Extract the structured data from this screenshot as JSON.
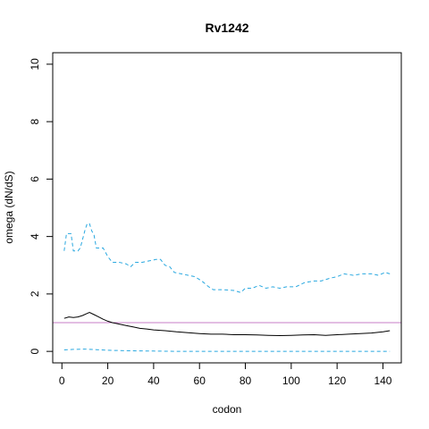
{
  "chart_data": {
    "type": "line",
    "title": "Rv1242",
    "xlabel": "codon",
    "ylabel": "omega (dN/dS)",
    "xlim": [
      -4,
      148
    ],
    "ylim": [
      -0.4,
      10.4
    ],
    "xticks": [
      0,
      20,
      40,
      60,
      80,
      100,
      120,
      140
    ],
    "yticks": [
      0,
      2,
      4,
      6,
      8,
      10
    ],
    "reference_line": {
      "y": 1,
      "color": "#c77cc7"
    },
    "grid": false,
    "series": [
      {
        "role": "estimate",
        "color": "#000000",
        "dash": "solid",
        "x": [
          1,
          3,
          5,
          7,
          9,
          11,
          12,
          14,
          16,
          18,
          20,
          22,
          25,
          28,
          31,
          34,
          37,
          40,
          45,
          50,
          55,
          60,
          65,
          70,
          75,
          80,
          85,
          90,
          95,
          100,
          105,
          110,
          115,
          120,
          125,
          130,
          135,
          140,
          143
        ],
        "y": [
          1.15,
          1.2,
          1.18,
          1.2,
          1.25,
          1.32,
          1.36,
          1.28,
          1.2,
          1.12,
          1.05,
          1.0,
          0.95,
          0.9,
          0.85,
          0.8,
          0.78,
          0.75,
          0.72,
          0.68,
          0.65,
          0.62,
          0.6,
          0.6,
          0.58,
          0.58,
          0.57,
          0.56,
          0.55,
          0.56,
          0.57,
          0.58,
          0.56,
          0.58,
          0.6,
          0.62,
          0.64,
          0.68,
          0.72
        ]
      },
      {
        "role": "upper",
        "color": "#29a8e0",
        "dash": "dashed",
        "x": [
          1,
          2,
          3,
          4,
          5,
          6,
          7,
          8,
          9,
          10,
          11,
          12,
          13,
          14,
          15,
          16,
          17,
          18,
          20,
          22,
          25,
          28,
          30,
          32,
          35,
          38,
          41,
          43,
          45,
          47,
          49,
          52,
          55,
          58,
          61,
          64,
          66,
          70,
          75,
          78,
          80,
          83,
          86,
          89,
          92,
          95,
          98,
          102,
          106,
          110,
          113,
          117,
          120,
          123,
          127,
          131,
          135,
          138,
          141,
          143
        ],
        "y": [
          3.5,
          4.1,
          4.1,
          4.1,
          3.5,
          3.5,
          3.5,
          3.6,
          3.9,
          4.2,
          4.45,
          4.45,
          4.2,
          4.05,
          3.6,
          3.6,
          3.6,
          3.6,
          3.3,
          3.1,
          3.1,
          3.05,
          2.95,
          3.1,
          3.1,
          3.15,
          3.2,
          3.2,
          3.0,
          2.95,
          2.75,
          2.7,
          2.65,
          2.6,
          2.45,
          2.25,
          2.15,
          2.15,
          2.12,
          2.05,
          2.2,
          2.2,
          2.3,
          2.2,
          2.25,
          2.2,
          2.25,
          2.25,
          2.4,
          2.45,
          2.45,
          2.55,
          2.6,
          2.7,
          2.65,
          2.7,
          2.7,
          2.65,
          2.75,
          2.7
        ]
      },
      {
        "role": "lower",
        "color": "#29a8e0",
        "dash": "dashed",
        "x": [
          1,
          5,
          10,
          15,
          20,
          30,
          40,
          50,
          60,
          70,
          80,
          90,
          100,
          110,
          120,
          130,
          140,
          143
        ],
        "y": [
          0.05,
          0.07,
          0.08,
          0.06,
          0.04,
          0.02,
          0.01,
          0.0,
          0.0,
          0.0,
          0.0,
          0.0,
          0.0,
          0.0,
          0.0,
          0.0,
          0.0,
          0.0
        ]
      }
    ]
  }
}
